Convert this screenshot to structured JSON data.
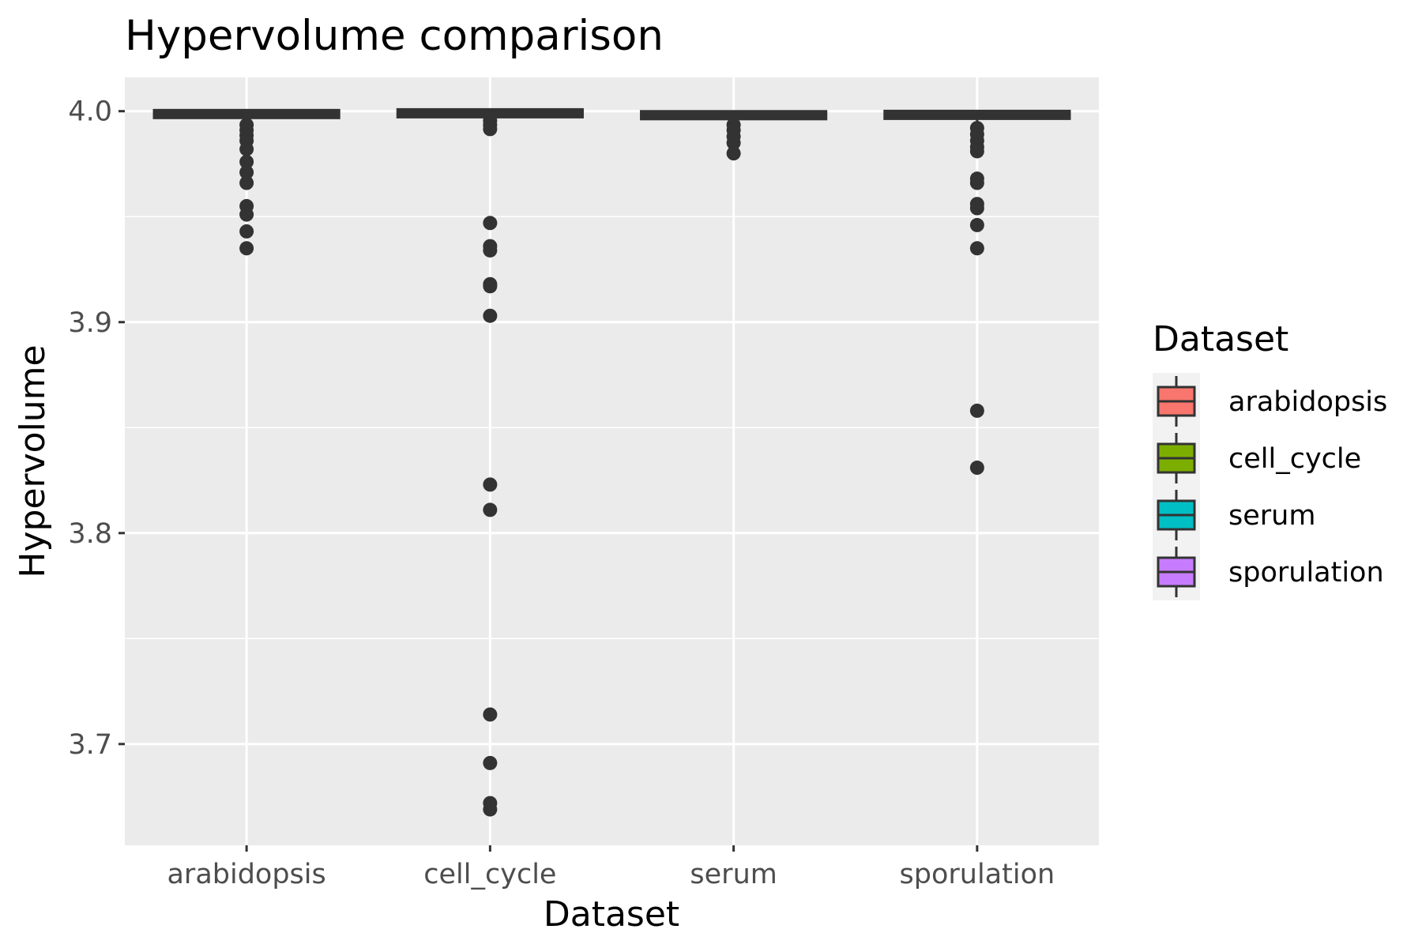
{
  "chart_data": {
    "type": "box",
    "title": "Hypervolume comparison",
    "xlabel": "Dataset",
    "ylabel": "Hypervolume",
    "categories": [
      "arabidopsis",
      "cell_cycle",
      "serum",
      "sporulation"
    ],
    "ylim": [
      3.652,
      4.016
    ],
    "yticks": [
      3.7,
      3.8,
      3.9,
      4.0
    ],
    "ytick_labels": [
      "3.7",
      "3.8",
      "3.9",
      "4.0"
    ],
    "grid": true,
    "legend": {
      "title": "Dataset",
      "position": "right",
      "entries": [
        "arabidopsis",
        "cell_cycle",
        "serum",
        "sporulation"
      ]
    },
    "series": [
      {
        "category": "arabidopsis",
        "fill": "#F8766D",
        "box": {
          "q1": 3.9978,
          "median": 3.9986,
          "q3": 3.9995,
          "whisker_low": 3.997,
          "whisker_high": 4.0
        },
        "outliers": [
          3.9935,
          3.991,
          3.9885,
          3.986,
          3.982,
          3.976,
          3.971,
          3.966,
          3.955,
          3.951,
          3.943,
          3.935
        ]
      },
      {
        "category": "cell_cycle",
        "fill": "#7CAE00",
        "box": {
          "q1": 3.998,
          "median": 3.9991,
          "q3": 4.0,
          "whisker_low": 3.997,
          "whisker_high": 4.0
        },
        "outliers": [
          3.9955,
          3.9935,
          3.9915,
          3.947,
          3.936,
          3.934,
          3.918,
          3.917,
          3.903,
          3.823,
          3.811,
          3.714,
          3.691,
          3.672,
          3.669
        ]
      },
      {
        "category": "serum",
        "fill": "#00BFC4",
        "box": {
          "q1": 3.9972,
          "median": 3.998,
          "q3": 3.999,
          "whisker_low": 3.996,
          "whisker_high": 4.0
        },
        "outliers": [
          3.9935,
          3.991,
          3.988,
          3.985,
          3.98
        ]
      },
      {
        "category": "sporulation",
        "fill": "#C77CFF",
        "box": {
          "q1": 3.997,
          "median": 3.998,
          "q3": 3.9995,
          "whisker_low": 3.995,
          "whisker_high": 4.0
        },
        "outliers": [
          3.992,
          3.989,
          3.986,
          3.983,
          3.981,
          3.968,
          3.966,
          3.956,
          3.954,
          3.946,
          3.935,
          3.858,
          3.831
        ]
      }
    ]
  },
  "style": {
    "panel_bg": "#EBEBEB",
    "grid_color": "#FFFFFF",
    "ink_color": "#333333",
    "tick_color": "#333333"
  }
}
